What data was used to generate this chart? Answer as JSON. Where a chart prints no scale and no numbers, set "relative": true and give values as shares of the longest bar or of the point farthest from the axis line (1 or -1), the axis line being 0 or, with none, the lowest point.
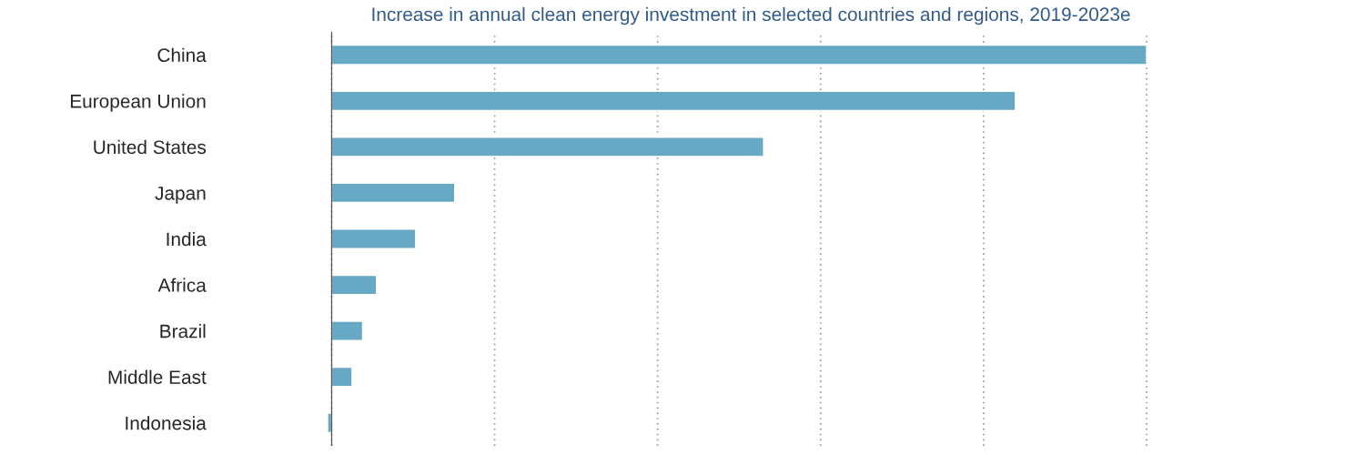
{
  "chart_data": {
    "type": "bar",
    "orientation": "horizontal",
    "relative": true,
    "title": "Increase in annual clean energy investment in selected countries and regions, 2019-2023e",
    "categories": [
      "China",
      "European Union",
      "United States",
      "Japan",
      "India",
      "Africa",
      "Brazil",
      "Middle East",
      "Indonesia"
    ],
    "values": [
      1,
      0.839,
      0.53,
      0.151,
      0.103,
      0.055,
      0.038,
      0.025,
      -0.005
    ],
    "color": "#67a9c4",
    "grid": "x"
  }
}
